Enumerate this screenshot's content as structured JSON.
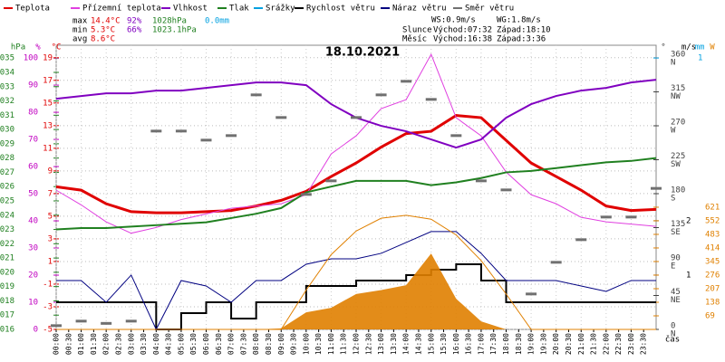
{
  "chart_data": {
    "type": "line",
    "title": "18.10.2021",
    "grid": true,
    "x_label": "čas",
    "xlim": [
      0,
      24
    ],
    "xticks": [
      {
        "value": 0,
        "label": "00:00"
      },
      {
        "value": 0.5,
        "label": "00:30"
      },
      {
        "value": 1,
        "label": "01:00"
      },
      {
        "value": 1.5,
        "label": "01:30"
      },
      {
        "value": 2,
        "label": "02:00"
      },
      {
        "value": 2.5,
        "label": "02:30"
      },
      {
        "value": 3,
        "label": "03:00"
      },
      {
        "value": 3.5,
        "label": "03:30"
      },
      {
        "value": 4,
        "label": "04:00"
      },
      {
        "value": 4.5,
        "label": "04:30"
      },
      {
        "value": 5,
        "label": "05:00"
      },
      {
        "value": 5.5,
        "label": "05:30"
      },
      {
        "value": 6,
        "label": "06:00"
      },
      {
        "value": 6.5,
        "label": "06:30"
      },
      {
        "value": 7,
        "label": "07:00"
      },
      {
        "value": 7.5,
        "label": "07:30"
      },
      {
        "value": 8,
        "label": "08:00"
      },
      {
        "value": 8.5,
        "label": "08:30"
      },
      {
        "value": 9,
        "label": "09:00"
      },
      {
        "value": 9.5,
        "label": "09:30"
      },
      {
        "value": 10,
        "label": "10:00"
      },
      {
        "value": 10.5,
        "label": "10:30"
      },
      {
        "value": 11,
        "label": "11:00"
      },
      {
        "value": 11.5,
        "label": "11:30"
      },
      {
        "value": 12,
        "label": "12:00"
      },
      {
        "value": 12.5,
        "label": "12:30"
      },
      {
        "value": 13,
        "label": "13:00"
      },
      {
        "value": 13.5,
        "label": "13:30"
      },
      {
        "value": 14,
        "label": "14:00"
      },
      {
        "value": 14.5,
        "label": "14:30"
      },
      {
        "value": 15,
        "label": "15:00"
      },
      {
        "value": 15.5,
        "label": "15:30"
      },
      {
        "value": 16,
        "label": "16:00"
      },
      {
        "value": 16.5,
        "label": "16:30"
      },
      {
        "value": 17,
        "label": "17:00"
      },
      {
        "value": 17.5,
        "label": "17:30"
      },
      {
        "value": 18,
        "label": "18:00"
      },
      {
        "value": 18.5,
        "label": "18:30"
      },
      {
        "value": 19,
        "label": "19:00"
      },
      {
        "value": 19.5,
        "label": "19:30"
      },
      {
        "value": 20,
        "label": "20:00"
      },
      {
        "value": 20.5,
        "label": "20:30"
      },
      {
        "value": 21,
        "label": "21:00"
      },
      {
        "value": 21.5,
        "label": "21:30"
      },
      {
        "value": 22,
        "label": "22:00"
      },
      {
        "value": 22.5,
        "label": "22:30"
      },
      {
        "value": 23,
        "label": "23:00"
      },
      {
        "value": 23.5,
        "label": "23:30"
      }
    ],
    "x": [
      0,
      1,
      2,
      3,
      4,
      5,
      6,
      7,
      8,
      9,
      10,
      11,
      12,
      13,
      14,
      15,
      16,
      17,
      18,
      19,
      20,
      21,
      22,
      23,
      24
    ],
    "axes": {
      "press": {
        "label": "hPa",
        "color": "#208020",
        "lim": [
          1016,
          1035.9
        ],
        "ticks": [
          1016,
          1017,
          1018,
          1019,
          1020,
          1021,
          1022,
          1023,
          1024,
          1025,
          1026,
          1027,
          1028,
          1029,
          1030,
          1031,
          1032,
          1033,
          1034,
          1035
        ]
      },
      "hum": {
        "label": "%",
        "color": "#c000c0",
        "lim": [
          0,
          104.7
        ],
        "ticks": [
          0,
          10,
          20,
          30,
          40,
          50,
          60,
          70,
          80,
          90,
          100
        ]
      },
      "temp": {
        "label": "°C",
        "color": "#e00000",
        "lim": [
          -5,
          20.1
        ],
        "ticks": [
          -5,
          -3,
          -1,
          1,
          3,
          5,
          7,
          9,
          11,
          13,
          15,
          17,
          19
        ]
      },
      "dir": {
        "label": "°",
        "color": "#404040",
        "lim": [
          0,
          376.8
        ],
        "ticks": [
          0,
          45,
          90,
          135,
          180,
          225,
          270,
          315,
          360
        ],
        "compass": [
          "N",
          "NE",
          "E",
          "SE",
          "S",
          "SW",
          "W",
          "NW",
          "N"
        ]
      },
      "wind": {
        "label": "m/s",
        "color": "#000000",
        "lim": [
          0,
          5.23
        ],
        "ticks": [
          1,
          2
        ]
      },
      "rain": {
        "label": "mm",
        "color": "#00a0e0",
        "lim": [
          0,
          1.047
        ],
        "ticks": [
          1
        ]
      },
      "solar": {
        "label": "W",
        "color": "#e08000",
        "lim": [
          0,
          1444
        ],
        "ticks": [
          69,
          138,
          207,
          276,
          345,
          414,
          483,
          552,
          621
        ]
      }
    },
    "series": [
      {
        "name": "Teplota",
        "color": "#e00000",
        "axis": "temp",
        "style": "line",
        "width": 3,
        "values": [
          7.6,
          7.3,
          6.1,
          5.4,
          5.3,
          5.3,
          5.4,
          5.5,
          5.9,
          6.4,
          7.2,
          8.5,
          9.7,
          11.1,
          12.3,
          12.5,
          13.9,
          13.7,
          11.7,
          9.7,
          8.5,
          7.3,
          5.9,
          5.5,
          5.6
        ]
      },
      {
        "name": "Přízemní teplota",
        "color": "#e040e0",
        "axis": "temp",
        "style": "line",
        "width": 1,
        "values": [
          7.3,
          6.0,
          4.5,
          3.5,
          4.0,
          4.7,
          5.2,
          5.7,
          5.9,
          6.1,
          6.9,
          10.5,
          12.1,
          14.5,
          15.3,
          19.3,
          13.7,
          12.1,
          8.9,
          6.9,
          6.1,
          4.9,
          4.5,
          4.3,
          4.1
        ]
      },
      {
        "name": "Vlhkost",
        "color": "#8000c0",
        "axis": "hum",
        "style": "line",
        "width": 2,
        "values": [
          85,
          86,
          87,
          87,
          88,
          88,
          89,
          90,
          91,
          91,
          90,
          83,
          78,
          75,
          73,
          70,
          67,
          70,
          78,
          83,
          86,
          88,
          89,
          91,
          92
        ]
      },
      {
        "name": "Tlak",
        "color": "#208020",
        "axis": "press",
        "style": "line",
        "width": 2,
        "values": [
          1023.0,
          1023.1,
          1023.1,
          1023.2,
          1023.3,
          1023.4,
          1023.5,
          1023.8,
          1024.1,
          1024.5,
          1025.6,
          1026.0,
          1026.4,
          1026.4,
          1026.4,
          1026.1,
          1026.3,
          1026.6,
          1027.0,
          1027.1,
          1027.3,
          1027.5,
          1027.7,
          1027.8,
          1028.0
        ]
      },
      {
        "name": "Srážky",
        "color": "#00a0e0",
        "axis": "rain",
        "style": "bar",
        "values": [
          0,
          0,
          0,
          0,
          0,
          0,
          0,
          0,
          0,
          0,
          0,
          0,
          0,
          0,
          0,
          0,
          0,
          0,
          0,
          0,
          0,
          0,
          0,
          0,
          0
        ]
      },
      {
        "name": "Rychlost větru",
        "color": "#000000",
        "axis": "wind",
        "style": "step",
        "width": 2,
        "values": [
          0.5,
          0.5,
          0.5,
          0.5,
          0.0,
          0.3,
          0.5,
          0.2,
          0.5,
          0.5,
          0.8,
          0.8,
          0.9,
          0.9,
          1.0,
          1.1,
          1.2,
          0.9,
          0.5,
          0.5,
          0.5,
          0.5,
          0.5,
          0.5,
          0.5
        ]
      },
      {
        "name": "Náraz větru",
        "color": "#000080",
        "axis": "wind",
        "style": "line",
        "width": 1,
        "values": [
          0.9,
          0.9,
          0.5,
          1.0,
          0.0,
          0.9,
          0.8,
          0.5,
          0.9,
          0.9,
          1.2,
          1.3,
          1.3,
          1.4,
          1.6,
          1.8,
          1.8,
          1.4,
          0.9,
          0.9,
          0.9,
          0.8,
          0.7,
          0.9,
          0.9
        ]
      },
      {
        "name": "Směr větru",
        "color": "#707070",
        "axis": "dir",
        "style": "dashes",
        "values": [
          5,
          11,
          8,
          11,
          263,
          263,
          251,
          257,
          311,
          281,
          179,
          197,
          281,
          311,
          329,
          305,
          257,
          197,
          185,
          47,
          89,
          119,
          149,
          149,
          187
        ]
      },
      {
        "color": "#e08000",
        "axis": "solar",
        "style": "area",
        "values": [
          0,
          0,
          0,
          0,
          0,
          0,
          0,
          0,
          0,
          5,
          87,
          110,
          180,
          200,
          225,
          386,
          156,
          41,
          0,
          0,
          0,
          0,
          0,
          0,
          0
        ]
      },
      {
        "color": "#e08000",
        "axis": "solar",
        "style": "line",
        "width": 1,
        "values": [
          0,
          0,
          0,
          0,
          0,
          0,
          0,
          0,
          0,
          0,
          200,
          380,
          500,
          565,
          580,
          560,
          480,
          350,
          180,
          0,
          0,
          0,
          0,
          0,
          0
        ]
      }
    ],
    "stats": [
      {
        "label": "max",
        "temp": "14.4°C",
        "hum": "92%",
        "press": "1028hPa",
        "rain": "0.0mm"
      },
      {
        "label": "min",
        "temp": "5.3°C",
        "hum": "66%",
        "press": "1023.1hPa"
      },
      {
        "label": "avg",
        "temp": "8.6°C"
      }
    ],
    "wind_info": {
      "ws": "WS:0.9m/s",
      "wg": "WG:1.8m/s"
    },
    "sun": {
      "label": "Slunce",
      "rise": "Východ:07:32",
      "set": "Západ:18:10"
    },
    "moon": {
      "label": "Měsíc",
      "rise": "Východ:16:38",
      "set": "Západ:3:36"
    }
  }
}
